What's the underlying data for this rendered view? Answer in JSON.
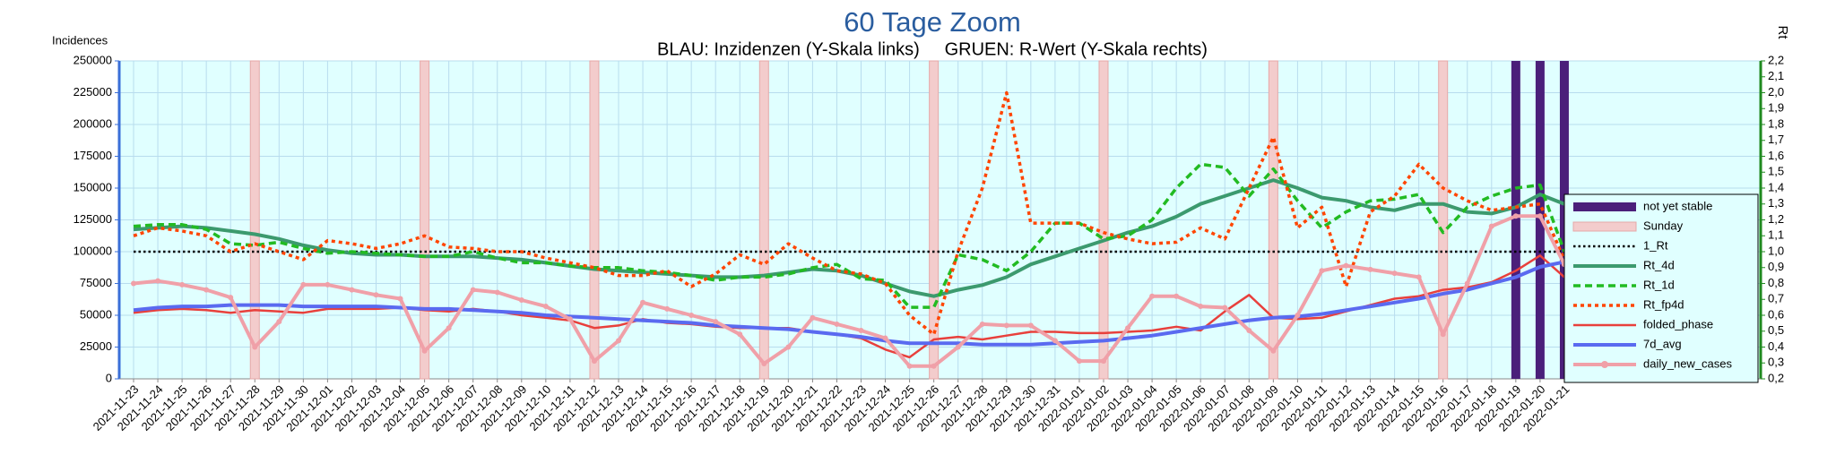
{
  "chart_data": {
    "type": "line",
    "title": "60 Tage Zoom",
    "subtitle": "BLAU: Inzidenzen (Y-Skala links)     GRUEN: R-Wert (Y-Skala rechts)",
    "ylabel": "Incidences",
    "y2label": "Rt",
    "grid": true,
    "legend": "right",
    "categories": [
      "2021-11-23",
      "2021-11-24",
      "2021-11-25",
      "2021-11-26",
      "2021-11-27",
      "2021-11-28",
      "2021-11-29",
      "2021-11-30",
      "2021-12-01",
      "2021-12-02",
      "2021-12-03",
      "2021-12-04",
      "2021-12-05",
      "2021-12-06",
      "2021-12-07",
      "2021-12-08",
      "2021-12-09",
      "2021-12-10",
      "2021-12-11",
      "2021-12-12",
      "2021-12-13",
      "2021-12-14",
      "2021-12-15",
      "2021-12-16",
      "2021-12-17",
      "2021-12-18",
      "2021-12-19",
      "2021-12-20",
      "2021-12-21",
      "2021-12-22",
      "2021-12-23",
      "2021-12-24",
      "2021-12-25",
      "2021-12-26",
      "2021-12-27",
      "2021-12-28",
      "2021-12-29",
      "2021-12-30",
      "2021-12-31",
      "2022-01-01",
      "2022-01-02",
      "2022-01-03",
      "2022-01-04",
      "2022-01-05",
      "2022-01-06",
      "2022-01-07",
      "2022-01-08",
      "2022-01-09",
      "2022-01-10",
      "2022-01-11",
      "2022-01-12",
      "2022-01-13",
      "2022-01-14",
      "2022-01-15",
      "2022-01-16",
      "2022-01-17",
      "2022-01-18",
      "2022-01-19",
      "2022-01-20",
      "2022-01-21"
    ],
    "ylim": [
      0,
      250000
    ],
    "yticks": [
      0,
      25000,
      50000,
      75000,
      100000,
      125000,
      150000,
      175000,
      200000,
      225000,
      250000
    ],
    "y2lim": [
      0.2,
      2.2
    ],
    "y2ticks": [
      {
        "value": 0.2,
        "label": "0,2"
      },
      {
        "value": 0.3,
        "label": "0,3"
      },
      {
        "value": 0.4,
        "label": "0,4"
      },
      {
        "value": 0.5,
        "label": "0,5"
      },
      {
        "value": 0.6,
        "label": "0,6"
      },
      {
        "value": 0.7,
        "label": "0,7"
      },
      {
        "value": 0.8,
        "label": "0,8"
      },
      {
        "value": 0.9,
        "label": "0,9"
      },
      {
        "value": 1.0,
        "label": "1,0"
      },
      {
        "value": 1.1,
        "label": "1,1"
      },
      {
        "value": 1.2,
        "label": "1,2"
      },
      {
        "value": 1.3,
        "label": "1,3"
      },
      {
        "value": 1.4,
        "label": "1,4"
      },
      {
        "value": 1.5,
        "label": "1,5"
      },
      {
        "value": 1.6,
        "label": "1,6"
      },
      {
        "value": 1.7,
        "label": "1,7"
      },
      {
        "value": 1.8,
        "label": "1,8"
      },
      {
        "value": 1.9,
        "label": "1,9"
      },
      {
        "value": 2.0,
        "label": "2,0"
      },
      {
        "value": 2.1,
        "label": "2,1"
      },
      {
        "value": 2.2,
        "label": "2,2"
      }
    ],
    "series": [
      {
        "name": "not yet stable",
        "color": "#4b1f7a",
        "style": "bar",
        "values": [
          null,
          null,
          null,
          null,
          null,
          null,
          null,
          null,
          null,
          null,
          null,
          null,
          null,
          null,
          null,
          null,
          null,
          null,
          null,
          null,
          null,
          null,
          null,
          null,
          null,
          null,
          null,
          null,
          null,
          null,
          null,
          null,
          null,
          null,
          null,
          null,
          null,
          null,
          null,
          null,
          null,
          null,
          null,
          null,
          null,
          null,
          null,
          null,
          null,
          null,
          null,
          null,
          null,
          null,
          null,
          null,
          null,
          250000,
          250000,
          250000
        ]
      },
      {
        "name": "Sunday",
        "color": "#f3cccc",
        "style": "bar",
        "values": [
          null,
          null,
          null,
          null,
          null,
          250000,
          null,
          null,
          null,
          null,
          null,
          null,
          250000,
          null,
          null,
          null,
          null,
          null,
          null,
          250000,
          null,
          null,
          null,
          null,
          null,
          null,
          250000,
          null,
          null,
          null,
          null,
          null,
          null,
          250000,
          null,
          null,
          null,
          null,
          null,
          null,
          250000,
          null,
          null,
          null,
          null,
          null,
          null,
          250000,
          null,
          null,
          null,
          null,
          null,
          null,
          250000,
          null,
          null,
          null,
          null,
          null
        ]
      },
      {
        "name": "1_Rt",
        "color": "#000000",
        "style": "dotted",
        "axis": "y2",
        "values": [
          1.0,
          1.0,
          1.0,
          1.0,
          1.0,
          1.0,
          1.0,
          1.0,
          1.0,
          1.0,
          1.0,
          1.0,
          1.0,
          1.0,
          1.0,
          1.0,
          1.0,
          1.0,
          1.0,
          1.0,
          1.0,
          1.0,
          1.0,
          1.0,
          1.0,
          1.0,
          1.0,
          1.0,
          1.0,
          1.0,
          1.0,
          1.0,
          1.0,
          1.0,
          1.0,
          1.0,
          1.0,
          1.0,
          1.0,
          1.0,
          1.0,
          1.0,
          1.0,
          1.0,
          1.0,
          1.0,
          1.0,
          1.0,
          1.0,
          1.0,
          1.0,
          1.0,
          1.0,
          1.0,
          1.0,
          1.0,
          1.0,
          1.0,
          1.0,
          1.0
        ]
      },
      {
        "name": "Rt_4d",
        "color": "#3c9a6e",
        "style": "thick",
        "axis": "y2",
        "values": [
          1.14,
          1.15,
          1.16,
          1.15,
          1.13,
          1.11,
          1.08,
          1.04,
          1.01,
          0.99,
          0.98,
          0.98,
          0.97,
          0.97,
          0.97,
          0.96,
          0.95,
          0.93,
          0.91,
          0.89,
          0.88,
          0.87,
          0.86,
          0.85,
          0.84,
          0.84,
          0.85,
          0.87,
          0.89,
          0.88,
          0.85,
          0.8,
          0.75,
          0.72,
          0.76,
          0.79,
          0.84,
          0.92,
          0.97,
          1.02,
          1.07,
          1.12,
          1.16,
          1.22,
          1.3,
          1.35,
          1.4,
          1.45,
          1.4,
          1.34,
          1.32,
          1.28,
          1.26,
          1.3,
          1.3,
          1.25,
          1.24,
          1.28,
          1.36,
          1.3
        ]
      },
      {
        "name": "Rt_1d",
        "color": "#22bb22",
        "style": "dashed",
        "axis": "y2",
        "values": [
          1.16,
          1.17,
          1.17,
          1.14,
          1.05,
          1.04,
          1.06,
          1.02,
          0.99,
          1.0,
          0.99,
          0.98,
          0.97,
          0.97,
          1.0,
          0.96,
          0.93,
          0.93,
          0.91,
          0.9,
          0.9,
          0.88,
          0.87,
          0.85,
          0.82,
          0.84,
          0.84,
          0.86,
          0.9,
          0.92,
          0.83,
          0.82,
          0.65,
          0.65,
          0.98,
          0.95,
          0.88,
          1.0,
          1.18,
          1.18,
          1.08,
          1.1,
          1.2,
          1.4,
          1.55,
          1.53,
          1.35,
          1.52,
          1.32,
          1.15,
          1.25,
          1.32,
          1.33,
          1.36,
          1.12,
          1.28,
          1.35,
          1.4,
          1.42,
          1.0
        ]
      },
      {
        "name": "Rt_fp4d",
        "color": "#ff4500",
        "style": "dotted-thick",
        "axis": "y2",
        "values": [
          1.1,
          1.15,
          1.13,
          1.1,
          1.0,
          1.05,
          1.0,
          0.95,
          1.07,
          1.05,
          1.02,
          1.05,
          1.1,
          1.03,
          1.02,
          1.0,
          1.0,
          0.96,
          0.93,
          0.9,
          0.85,
          0.85,
          0.88,
          0.78,
          0.86,
          0.98,
          0.92,
          1.05,
          0.96,
          0.88,
          0.86,
          0.8,
          0.6,
          0.48,
          1.0,
          1.4,
          2.0,
          1.18,
          1.18,
          1.18,
          1.12,
          1.08,
          1.05,
          1.06,
          1.15,
          1.08,
          1.4,
          1.72,
          1.15,
          1.28,
          0.78,
          1.25,
          1.35,
          1.55,
          1.4,
          1.32,
          1.26,
          1.28,
          1.3,
          0.95
        ]
      },
      {
        "name": "folded_phase",
        "color": "#e8403c",
        "style": "line",
        "values": [
          52000,
          54000,
          55000,
          54000,
          52000,
          54000,
          53000,
          52000,
          55000,
          55000,
          55000,
          56000,
          54000,
          53000,
          55000,
          53000,
          50000,
          48000,
          46000,
          40000,
          42000,
          47000,
          44000,
          43000,
          41000,
          40000,
          40000,
          40000,
          37000,
          35000,
          32000,
          23000,
          17000,
          31000,
          33000,
          31000,
          34000,
          37000,
          37000,
          36000,
          36000,
          37000,
          38000,
          41000,
          38000,
          53000,
          66000,
          48000,
          47000,
          48000,
          53000,
          58000,
          63000,
          65000,
          70000,
          72000,
          76000,
          85000,
          97000,
          80000
        ]
      },
      {
        "name": "7d_avg",
        "color": "#5a6af0",
        "style": "thick",
        "values": [
          54000,
          56000,
          57000,
          57000,
          58000,
          58000,
          58000,
          57000,
          57000,
          57000,
          57000,
          56000,
          55000,
          55000,
          54000,
          53000,
          52000,
          50000,
          49000,
          48000,
          47000,
          46000,
          45000,
          44000,
          42000,
          41000,
          40000,
          39000,
          37000,
          35000,
          33000,
          30000,
          28000,
          28000,
          28000,
          27000,
          27000,
          27000,
          28000,
          29000,
          30000,
          32000,
          34000,
          37000,
          40000,
          43000,
          46000,
          48000,
          49000,
          51000,
          54000,
          57000,
          60000,
          63000,
          67000,
          70000,
          75000,
          80000,
          88000,
          92000
        ]
      },
      {
        "name": "daily_new_cases",
        "color": "#f0a0a8",
        "style": "marker",
        "values": [
          75000,
          77000,
          74000,
          70000,
          64000,
          25000,
          45000,
          74000,
          74000,
          70000,
          66000,
          63000,
          22000,
          40000,
          70000,
          68000,
          62000,
          57000,
          47000,
          14000,
          30000,
          60000,
          55000,
          50000,
          45000,
          35000,
          12000,
          25000,
          48000,
          43000,
          38000,
          32000,
          10000,
          10000,
          25000,
          43000,
          42000,
          42000,
          30000,
          14000,
          14000,
          40000,
          65000,
          65000,
          57000,
          56000,
          38000,
          22000,
          50000,
          85000,
          89000,
          86000,
          83000,
          80000,
          35000,
          75000,
          120000,
          128000,
          128000,
          90000
        ]
      }
    ]
  }
}
